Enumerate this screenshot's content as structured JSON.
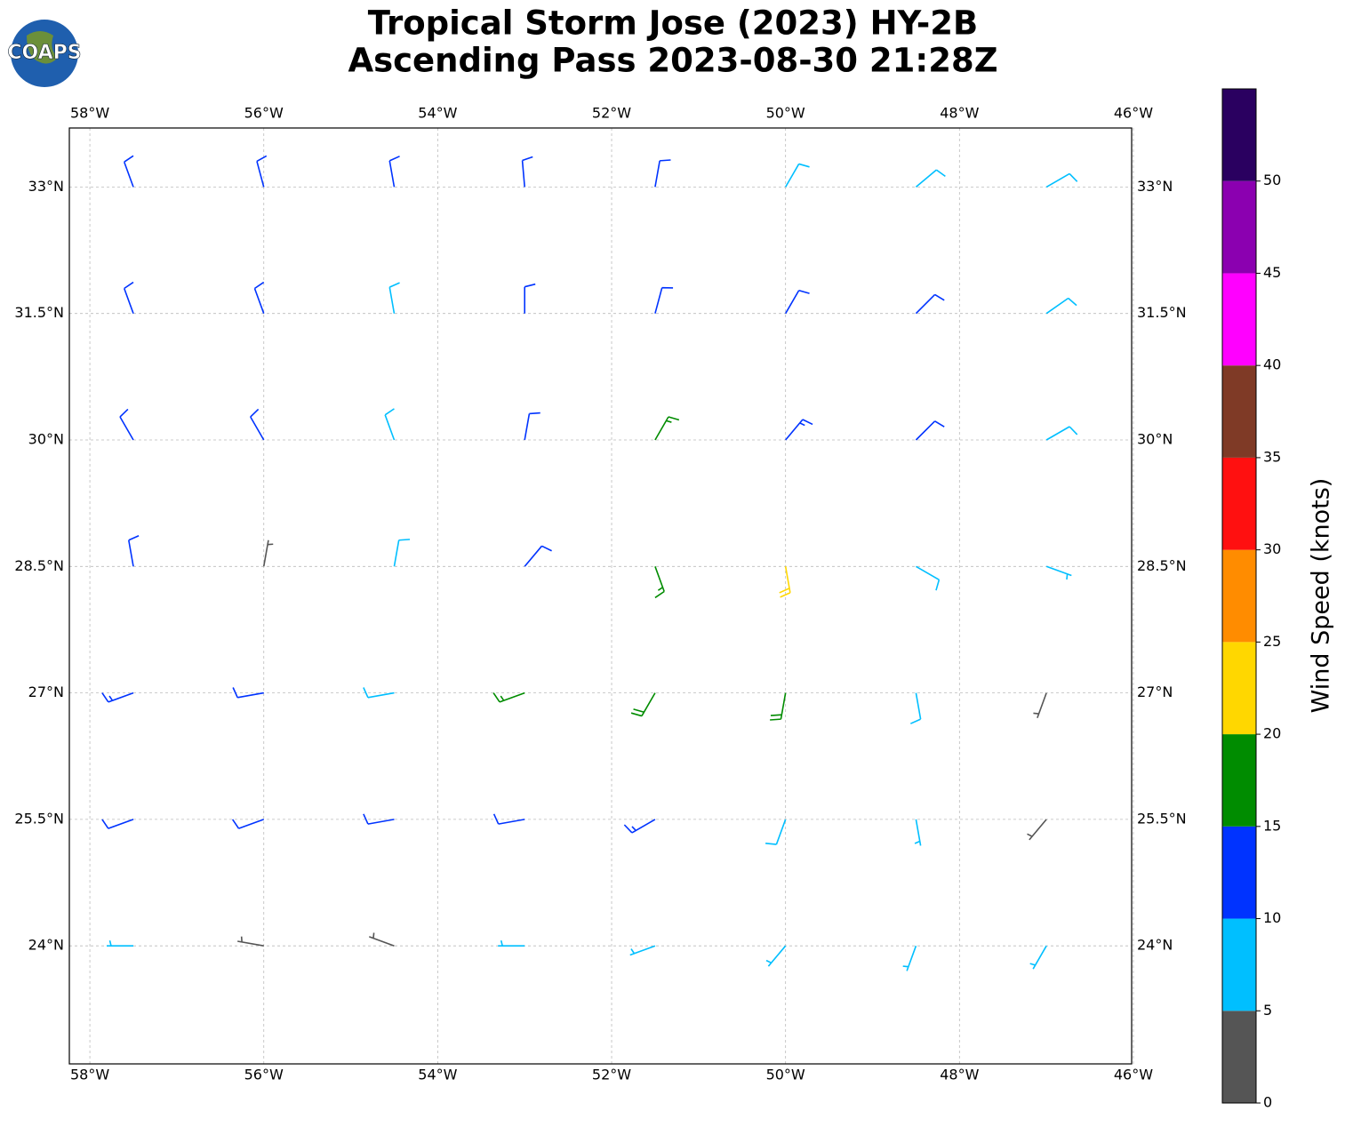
{
  "chart_data": {
    "type": "barbs",
    "logo": "COAPS",
    "title": [
      "Tropical Storm Jose (2023) HY-2B",
      "Ascending Pass 2023-08-30 21:28Z"
    ],
    "xlim": [
      -58.236,
      -46.02
    ],
    "ylim": [
      22.6,
      33.7
    ],
    "xticks": [
      {
        "value": -58,
        "label": "58°W"
      },
      {
        "value": -56,
        "label": "56°W"
      },
      {
        "value": -54,
        "label": "54°W"
      },
      {
        "value": -52,
        "label": "52°W"
      },
      {
        "value": -50,
        "label": "50°W"
      },
      {
        "value": -48,
        "label": "48°W"
      },
      {
        "value": -46,
        "label": "46°W"
      }
    ],
    "yticks": [
      {
        "value": 24,
        "label": "24°N"
      },
      {
        "value": 25.5,
        "label": "25.5°N"
      },
      {
        "value": 27,
        "label": "27°N"
      },
      {
        "value": 28.5,
        "label": "28.5°N"
      },
      {
        "value": 30,
        "label": "30°N"
      },
      {
        "value": 31.5,
        "label": "31.5°N"
      },
      {
        "value": 33,
        "label": "33°N"
      }
    ],
    "grid": true,
    "colorbar": {
      "label": "Wind Speed (knots)",
      "bounds": [
        0,
        5,
        10,
        15,
        20,
        25,
        30,
        35,
        40,
        45,
        50,
        55
      ],
      "colors": [
        "#555555",
        "#00bfff",
        "#0033ff",
        "#008c00",
        "#ffd700",
        "#ff8c00",
        "#ff1010",
        "#7f3a26",
        "#ff00ff",
        "#8b00b0",
        "#2a0060"
      ],
      "ticks": [
        0,
        5,
        10,
        15,
        20,
        25,
        30,
        35,
        40,
        45,
        50
      ]
    },
    "barbs": {
      "lon": [
        -57.5,
        -56,
        -54.5,
        -53,
        -51.5,
        -50,
        -48.5,
        -47,
        -57.5,
        -56,
        -54.5,
        -53,
        -51.5,
        -50,
        -48.5,
        -47,
        -57.5,
        -56,
        -54.5,
        -53,
        -51.5,
        -50,
        -48.5,
        -47,
        -57.5,
        -56,
        -54.5,
        -53,
        -51.5,
        -50,
        -48.5,
        -47,
        -57.5,
        -56,
        -54.5,
        -53,
        -51.5,
        -50,
        -48.5,
        -47,
        -57.5,
        -56,
        -54.5,
        -53,
        -51.5,
        -50,
        -48.5,
        -47,
        -57.5,
        -56,
        -54.5,
        -53,
        -51.5,
        -50,
        -48.5,
        -47
      ],
      "lat": [
        33,
        33,
        33,
        33,
        33,
        33,
        33,
        33,
        31.5,
        31.5,
        31.5,
        31.5,
        31.5,
        31.5,
        31.5,
        31.5,
        30,
        30,
        30,
        30,
        30,
        30,
        30,
        30,
        28.5,
        28.5,
        28.5,
        28.5,
        28.5,
        28.5,
        28.5,
        28.5,
        27,
        27,
        27,
        27,
        27,
        27,
        27,
        27,
        25.5,
        25.5,
        25.5,
        25.5,
        25.5,
        25.5,
        25.5,
        25.5,
        24,
        24,
        24,
        24,
        24,
        24,
        24,
        24
      ],
      "speed": [
        12,
        12,
        12,
        12,
        11,
        8,
        8,
        8,
        12,
        11,
        8,
        12,
        12,
        12,
        10,
        9,
        12,
        12,
        9,
        11,
        16,
        14,
        10,
        8,
        12,
        3,
        8,
        12,
        17,
        22,
        8,
        7,
        14,
        12,
        8,
        17,
        18,
        18,
        8,
        3,
        12,
        12,
        11,
        12,
        13,
        9,
        7,
        3,
        7,
        3,
        3,
        7,
        6,
        5,
        6,
        5
      ],
      "direction": [
        340,
        345,
        350,
        355,
        10,
        30,
        50,
        60,
        340,
        340,
        350,
        0,
        15,
        30,
        45,
        55,
        330,
        330,
        340,
        10,
        30,
        40,
        45,
        60,
        350,
        10,
        10,
        40,
        160,
        170,
        120,
        110,
        250,
        260,
        260,
        250,
        210,
        190,
        170,
        200,
        250,
        250,
        260,
        260,
        240,
        200,
        170,
        220,
        270,
        280,
        290,
        270,
        250,
        220,
        200,
        210
      ]
    }
  }
}
